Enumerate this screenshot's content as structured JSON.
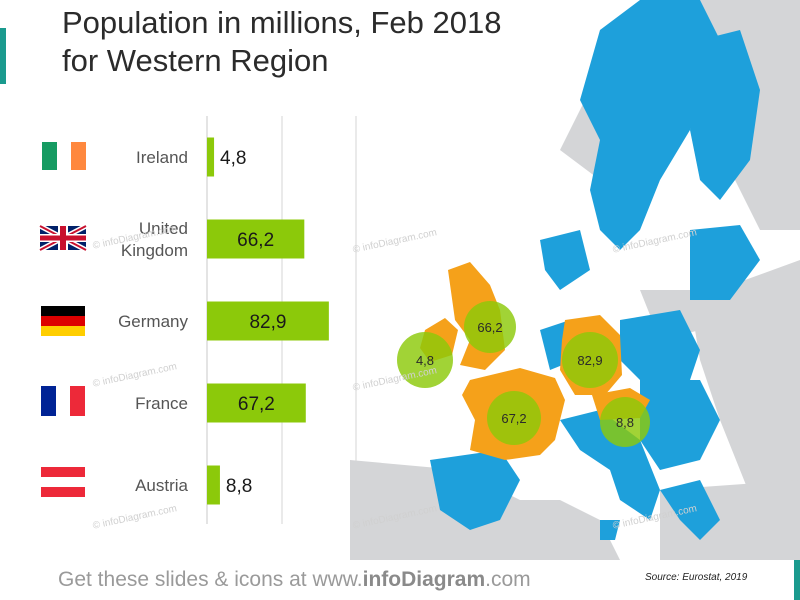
{
  "title": {
    "line1": "Population in millions, Feb 2018",
    "line2": "for Western Region"
  },
  "chart_data": {
    "type": "bar",
    "orientation": "horizontal",
    "categories": [
      "Ireland",
      "United Kingdom",
      "Germany",
      "France",
      "Austria"
    ],
    "category_lines": [
      [
        "Ireland"
      ],
      [
        "United",
        "Kingdom"
      ],
      [
        "Germany"
      ],
      [
        "France"
      ],
      [
        "Austria"
      ]
    ],
    "values": [
      4.8,
      66.2,
      82.9,
      67.2,
      8.8
    ],
    "value_labels": [
      "4,8",
      "66,2",
      "82,9",
      "67,2",
      "8,8"
    ],
    "bar_color": "#8cc90a",
    "xlim": [
      0,
      100
    ],
    "grid": true
  },
  "map": {
    "highlight_color": "#f5a11a",
    "base_color": "#1ea0db",
    "outside_color": "#d4d5d7",
    "bubble_color": "#8cc90a",
    "bubbles": [
      {
        "country": "Ireland",
        "label": "4,8"
      },
      {
        "country": "United Kingdom",
        "label": "66,2"
      },
      {
        "country": "Germany",
        "label": "82,9"
      },
      {
        "country": "France",
        "label": "67,2"
      },
      {
        "country": "Austria",
        "label": "8,8"
      }
    ]
  },
  "watermark_text": "© infoDiagram.com",
  "footer": {
    "prefix": "Get these slides & icons at www.",
    "brand": "infoDiagram",
    "suffix": ".com"
  },
  "source": "Source: Eurostat, 2019"
}
